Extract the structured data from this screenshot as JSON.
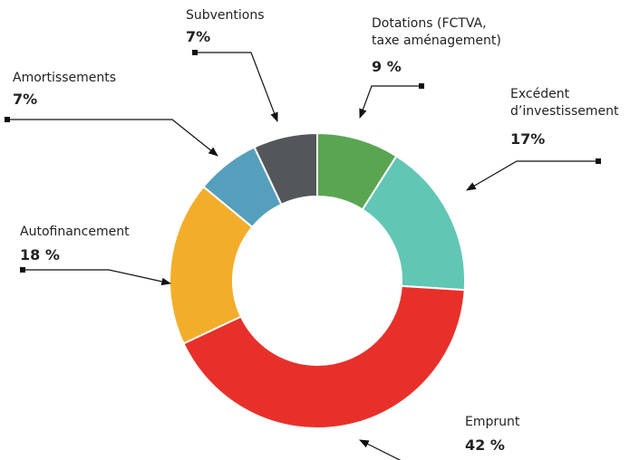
{
  "chart_data": {
    "type": "donut",
    "categories": [
      "Dotations (FCTVA, taxe aménagement)",
      "Excédent d’investissement",
      "Emprunt",
      "Autofinancement",
      "Amortissements",
      "Subventions"
    ],
    "values": [
      9,
      17,
      42,
      18,
      7,
      7
    ],
    "value_labels": [
      "9 %",
      "17%",
      "42 %",
      "18 %",
      "7%",
      "7%"
    ],
    "colors": [
      "#5aa552",
      "#62c6b4",
      "#e8302a",
      "#f2ae2b",
      "#559fbd",
      "#545759"
    ]
  }
}
